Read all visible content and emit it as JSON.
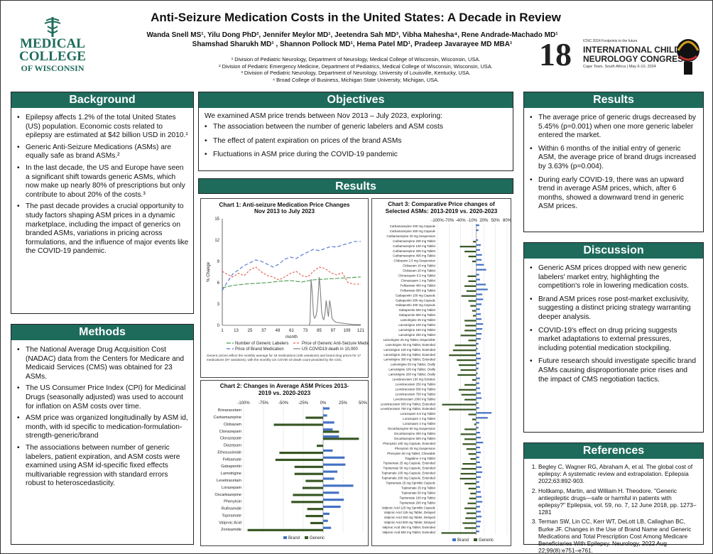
{
  "header": {
    "title": "Anti-Seizure Medication Costs in the United States: A Decade in Review",
    "authors_line1": "Wanda Snell MS¹, Yilu Dong PhD², Jennifer Meylor MD¹, Jeetendra Sah MD³, Vibha Mahesha⁴, Rene Andrade-Machado MD¹",
    "authors_line2": "Shamshad Sharukh MD¹ , Shannon Pollock MD¹, Hema Patel MD¹, Pradeep Javarayee MD MBA¹",
    "affiliations": [
      "¹ Division of Pediatric Neurology, Department of Neurology, Medical College of Wisconsin, Wisconsin, USA.",
      "² Division of Pediatric Emergency Medicine, Department of Pediatrics, Medical College of Wisconsin, Wisconsin, USA.",
      "³ Division of Pediatric Neurology, Department of Neurology, University of Louisville, Kentucky, USA.",
      "⁴ Broad College of Business, Michigan State University, Michigan, USA."
    ],
    "logo_left": {
      "line1": "MEDICAL",
      "line2": "COLLEGE",
      "line3": "OF WISCONSIN"
    },
    "logo_right": {
      "small": "ICNC 2024 Footprints to the future",
      "big1": "INTERNATIONAL CHILD",
      "big2": "NEUROLOGY CONGRESS",
      "sub": "Cape Town, South Africa | May 6-10, 2024",
      "num": "18"
    }
  },
  "background": {
    "heading": "Background",
    "items": [
      "Epilepsy affects 1.2% of the total United States (US) population. Economic costs related to epilepsy are estimated at $42 billion USD in 2010.¹",
      "Generic Anti-Seizure Medications (ASMs) are equally safe as brand ASMs.²",
      "In the last decade, the US and Europe have seen a significant shift towards generic ASMs, which now make up nearly 80% of prescriptions but only contribute to about 20% of the costs.³",
      "The past decade provides a crucial opportunity to study factors shaping ASM prices in a dynamic marketplace, including the impact of generics on branded ASMs, variations in pricing across formulations, and the influence of major events like the COVID-19 pandemic."
    ]
  },
  "methods": {
    "heading": "Methods",
    "items": [
      "The National Average Drug Acquisition Cost (NADAC) data from the Centers for Medicare and Medicaid Services (CMS) was obtained for 23 ASMs.",
      "The US Consumer Price Index (CPI) for Medicinal Drugs (seasonally adjusted) was used to account for inflation on ASM costs over time.",
      "ASM price was organized longitudinally by ASM id, month, with id specific to medication-formulation-strength-generic/brand",
      "The associations between number of generic labelers, patient expiration, and ASM costs were examined using ASM id-specific fixed effects multivariable regression with standard errors robust to heteroscedasticity."
    ]
  },
  "objectives": {
    "heading": "Objectives",
    "intro": "We examined ASM price trends between Nov 2013 – July 2023, exploring:",
    "items": [
      "The association between the number of generic labelers and ASM costs",
      "The effect of patent expiration on prices of the brand ASMs",
      "Fluctuations in ASM price during the COVID-19 pandemic"
    ]
  },
  "results_heading": "Results",
  "results": {
    "heading": "Results",
    "items": [
      "The average price of generic drugs decreased by 5.45% (p=0.001) when one more generic labeler entered the market.",
      "Within 6 months of the initial entry of generic ASM, the average price of brand drugs increased by 3.63% (p=0.004).",
      "During early COVID-19, there was an upward trend in average ASM prices, which, after 6 months, showed a downward trend in generic ASM prices."
    ]
  },
  "discussion": {
    "heading": "Discussion",
    "items": [
      "Generic ASM prices dropped with new generic labelers' market entry, highlighting the competition's role in lowering medication costs.",
      "Brand ASM prices rose post-market exclusivity, suggesting a distinct pricing strategy warranting deeper analysis.",
      "COVID-19's effect on drug pricing suggests market adaptations to external pressures, including potential medication stockpiling.",
      "Future research should investigate specific brand ASMs causing disproportionate price rises and the impact of CMS negotiation tactics."
    ]
  },
  "references": {
    "heading": "References",
    "items": [
      "Begley C, Wagner RG, Abraham A, et al. The global cost of epilepsy: A systematic review and extrapolation. Epilepsia 2022;63:892-903.",
      "Holtkamp, Martin, and William H. Theodore. \"Generic antiepileptic drugs—safe or harmful in patients with epilepsy?\" Epilepsia, vol. 59, no. 7, 12 June 2018, pp. 1273–1281",
      "Terman SW, Lin CC, Kerr WT, DeLott LB, Callaghan BC, Burke JF. Changes in the Use of Brand Name and Generic Medications and Total Prescription Cost Among Medicare Beneficiaries With Epilepsy. Neurology, 2022 Aug 22;99(8):e751–e761."
    ]
  },
  "colors": {
    "teal": "#1e6b5c",
    "brand": "#4472c4",
    "generic": "#375623"
  },
  "chart_data": [
    {
      "type": "line",
      "title": "Chart 1: Anti-seizure Medication Price Changes Nov 2013 to July 2023",
      "xlabel": "month",
      "ylabel": "% Change",
      "ylim": [
        0,
        15
      ],
      "yticks": [
        0,
        3,
        6,
        9,
        12,
        15
      ],
      "xticks": [
        1,
        13,
        25,
        37,
        49,
        61,
        73,
        85,
        97,
        109,
        121
      ],
      "xlim": [
        1,
        121
      ],
      "legend": [
        "Number of Generic Labelers",
        "Price of Generic Anti-Seizure Medication",
        "Price of Brand Medication",
        "US COVID19 death in 10,000"
      ],
      "note": "Generic prices reflect the monthly average for 18 medications (106 variations) and brand drug prices for 17 medications (97 variations), with the monthly US COVID-19 death count provided by the CDC.",
      "series": [
        {
          "name": "Number of Generic Labelers",
          "color": "#4a9a4a",
          "dash": "6,2",
          "points": [
            [
              1,
              5.3
            ],
            [
              10,
              5.6
            ],
            [
              20,
              5.8
            ],
            [
              30,
              5.9
            ],
            [
              40,
              6.0
            ],
            [
              50,
              6.2
            ],
            [
              60,
              6.3
            ],
            [
              70,
              6.1
            ],
            [
              80,
              6.4
            ],
            [
              90,
              6.5
            ],
            [
              100,
              6.6
            ],
            [
              110,
              6.7
            ],
            [
              121,
              6.8
            ]
          ]
        },
        {
          "name": "Price of Generic Anti-Seizure Medication",
          "color": "#e06050",
          "dash": "3,2",
          "points": [
            [
              1,
              7.6
            ],
            [
              5,
              7.2
            ],
            [
              10,
              6.8
            ],
            [
              15,
              7.3
            ],
            [
              20,
              7.0
            ],
            [
              25,
              7.8
            ],
            [
              30,
              8.2
            ],
            [
              35,
              7.5
            ],
            [
              40,
              7.0
            ],
            [
              45,
              6.8
            ],
            [
              50,
              6.4
            ],
            [
              55,
              6.8
            ],
            [
              60,
              7.3
            ],
            [
              65,
              7.6
            ],
            [
              70,
              7.0
            ],
            [
              75,
              6.8
            ],
            [
              80,
              7.6
            ],
            [
              85,
              8.2
            ],
            [
              90,
              8.0
            ],
            [
              95,
              7.4
            ],
            [
              100,
              7.1
            ],
            [
              105,
              7.4
            ],
            [
              110,
              6.0
            ],
            [
              115,
              5.8
            ],
            [
              121,
              5.8
            ]
          ]
        },
        {
          "name": "Price of Brand Medication",
          "color": "#5070d0",
          "dash": "5,3",
          "points": [
            [
              1,
              4.9
            ],
            [
              5,
              6.0
            ],
            [
              10,
              7.2
            ],
            [
              15,
              7.8
            ],
            [
              20,
              8.4
            ],
            [
              25,
              8.8
            ],
            [
              30,
              9.2
            ],
            [
              35,
              9.0
            ],
            [
              40,
              8.6
            ],
            [
              45,
              8.2
            ],
            [
              50,
              8.6
            ],
            [
              55,
              9.3
            ],
            [
              60,
              9.6
            ],
            [
              65,
              9.4
            ],
            [
              70,
              9.9
            ],
            [
              75,
              10.3
            ],
            [
              80,
              10.7
            ],
            [
              85,
              10.5
            ],
            [
              90,
              10.8
            ],
            [
              95,
              11.1
            ],
            [
              100,
              11.0
            ],
            [
              105,
              11.3
            ],
            [
              110,
              11.5
            ],
            [
              115,
              11.8
            ],
            [
              121,
              11.8
            ]
          ]
        },
        {
          "name": "US COVID19 death in 10,000",
          "color": "#808080",
          "dash": "",
          "points": [
            [
              1,
              0
            ],
            [
              76,
              0
            ],
            [
              77,
              0.3
            ],
            [
              78,
              6.5
            ],
            [
              79,
              4.5
            ],
            [
              80,
              1.5
            ],
            [
              81,
              1.0
            ],
            [
              82,
              1.2
            ],
            [
              83,
              2.0
            ],
            [
              84,
              4.0
            ],
            [
              85,
              6.8
            ],
            [
              86,
              5.0
            ],
            [
              87,
              2.0
            ],
            [
              88,
              1.0
            ],
            [
              89,
              0.8
            ],
            [
              90,
              1.6
            ],
            [
              91,
              3.5
            ],
            [
              92,
              2.2
            ],
            [
              93,
              1.2
            ],
            [
              94,
              3.5
            ],
            [
              95,
              2.6
            ],
            [
              96,
              1.0
            ],
            [
              98,
              0.6
            ],
            [
              100,
              0.4
            ],
            [
              105,
              0.3
            ],
            [
              110,
              0.2
            ],
            [
              115,
              0.1
            ],
            [
              121,
              0.1
            ]
          ]
        }
      ]
    },
    {
      "type": "bar",
      "orientation": "horizontal",
      "title": "Chart 2: Changes in Average ASM Prices 2013-2019 vs. 2020-2023",
      "xlim": [
        -100,
        50
      ],
      "xticks": [
        "-100%",
        "-75%",
        "-50%",
        "-25%",
        "0%",
        "25%",
        "50%"
      ],
      "categories": [
        "Brivaracetam",
        "Carbamazepine",
        "Clobazam",
        "Clonazepam",
        "Clorazepate",
        "Diazepam",
        "Ethosuximide",
        "Felbamate",
        "Gabapentin",
        "Lamotrigine",
        "Levetiracetam",
        "Lorazepam",
        "Oxcarbazepine",
        "Phenytoin",
        "Rufinamide",
        "Topiramate",
        "Valproic Acid",
        "Zonisamide"
      ],
      "series": [
        {
          "name": "Brand",
          "values": [
            8,
            5,
            14,
            12,
            20,
            0,
            12,
            27,
            28,
            18,
            14,
            38,
            20,
            26,
            22,
            8,
            6,
            10
          ]
        },
        {
          "name": "Generic",
          "values": [
            0,
            -22,
            -62,
            20,
            45,
            -8,
            -55,
            -60,
            -36,
            -36,
            -22,
            -26,
            -38,
            -40,
            -20,
            -22,
            -16,
            -95
          ]
        }
      ]
    },
    {
      "type": "bar",
      "orientation": "horizontal",
      "title": "Chart 3: Comparative Price changes of Selected ASMs: 2013-2019 vs. 2020-2023",
      "xlim": [
        -100,
        80
      ],
      "xticks": [
        "-100%",
        "-70%",
        "-40%",
        "-10%",
        "20%",
        "50%",
        "80%"
      ],
      "categories": [
        "Carbamazepine 200 mg Capsule",
        "Carbamazepine 300 mg Capsule",
        "Carbamazepine 20 mg Suspension",
        "Carbamazepine 200 mg Tablet",
        "Carbamazepine 100 mg Tablet",
        "Carbamazepine 200 mg Tablet",
        "Carbamazepine 400 mg Tablet",
        "Clobazam 2.5 mg Suspension",
        "Clobazam 10 mg Tablet",
        "Clobazam 20 mg Tablet",
        "Clonazepam 0.5 mg Tablet",
        "Clonazepam 1 mg Tablet",
        "Felbamate 400 mg Tablet",
        "Felbamate 600 mg Tablet",
        "Gabapentin 100 mg Capsule",
        "Gabapentin 300 mg Capsule",
        "Gabapentin 400 mg Capsule",
        "Gabapentin 600 mg Tablet",
        "Gabapentin 800 mg Tablet",
        "Lamotrigine 25 mg Tablet",
        "Lamotrigine 100 mg Tablet",
        "Lamotrigine 150 mg Tablet",
        "Lamotrigine 200 mg Tablet",
        "Lamotrigine 25 mg Tablet, Dispersible",
        "Lamotrigine 25 mg Tablet, Extended",
        "Lamotrigine 100 mg Tablet, Extended",
        "Lamotrigine 200 mg Tablet, Extended",
        "Lamotrigine 300 mg Tablet, Extended",
        "Lamotrigine 50 mg Tablet, Orally",
        "Lamotrigine 100 mg Tablet, Orally",
        "Lamotrigine 200 mg Tablet, Orally",
        "Levetiracetam 100 mg Solution",
        "Levetiracetam 250 mg Tablet",
        "Levetiracetam 500 mg Tablet",
        "Levetiracetam 750 mg Tablet",
        "Levetiracetam 1000 mg Tablet",
        "Levetiracetam 500 mg Tablet, Extended",
        "Levetiracetam 750 mg Tablet, Extended",
        "Lorazepam 0.5 mg Tablet",
        "Lorazepam 1 mg Tablet",
        "Lorazepam 2 mg Tablet",
        "Oxcarbazepine 60 mg Suspension",
        "Oxcarbazepine 300 mg Tablet",
        "Oxcarbazepine 600 mg Tablet",
        "Phenytoin 100 mg Capsule, Extended",
        "Phenytoin 25 mg Suspension",
        "Phenytoin 50 mg Tablet, Chewable",
        "Tiagabine 4 mg Tablet",
        "Topiramate 25 mg Capsule, Extended",
        "Topiramate 50 mg Capsule, Extended",
        "Topiramate 100 mg Capsule, Extended",
        "Topiramate 200 mg Capsule, Extended",
        "Topiramate 25 mg Sprinkle Capsule",
        "Topiramate 25 mg Tablet",
        "Topiramate 50 mg Tablet",
        "Topiramate 100 mg Tablet",
        "Topiramate 200 mg Tablet",
        "Valproic Acid 125 mg Sprinkle Capsule",
        "Valproic Acid 125 mg Tablet, Delayed",
        "Valproic Acid 250 mg Tablet, Delayed",
        "Valproic Acid 500 mg Tablet, Delayed",
        "Valproic Acid 250 mg Tablet, Extended",
        "Valproic Acid 500 mg Tablet, Extended"
      ],
      "series": [
        {
          "name": "Brand",
          "values": [
            8,
            6,
            0,
            5,
            12,
            10,
            15,
            14,
            20,
            26,
            8,
            10,
            25,
            30,
            16,
            18,
            14,
            10,
            12,
            14,
            18,
            16,
            14,
            12,
            6,
            4,
            10,
            12,
            8,
            6,
            4,
            10,
            8,
            10,
            12,
            14,
            6,
            8,
            40,
            30,
            8,
            6,
            10,
            12,
            18,
            10,
            12,
            8,
            10,
            14,
            16,
            12,
            8,
            10,
            12,
            14,
            16,
            10,
            12,
            14,
            12,
            10,
            8
          ]
        },
        {
          "name": "Generic",
          "values": [
            0,
            0,
            0,
            -8,
            -42,
            -30,
            -20,
            -10,
            0,
            0,
            -22,
            -20,
            -30,
            -25,
            -38,
            -20,
            -15,
            -10,
            -8,
            -30,
            -28,
            -30,
            -40,
            -20,
            -55,
            -60,
            -70,
            -50,
            -45,
            -40,
            -48,
            -10,
            -30,
            -45,
            -38,
            -30,
            -88,
            -70,
            -20,
            -10,
            -5,
            -30,
            -40,
            -30,
            -35,
            -25,
            -20,
            -15,
            -35,
            -38,
            -40,
            -42,
            -30,
            -20,
            -15,
            -18,
            -22,
            -30,
            -25,
            -28,
            -35,
            -30,
            -90
          ]
        }
      ]
    }
  ]
}
